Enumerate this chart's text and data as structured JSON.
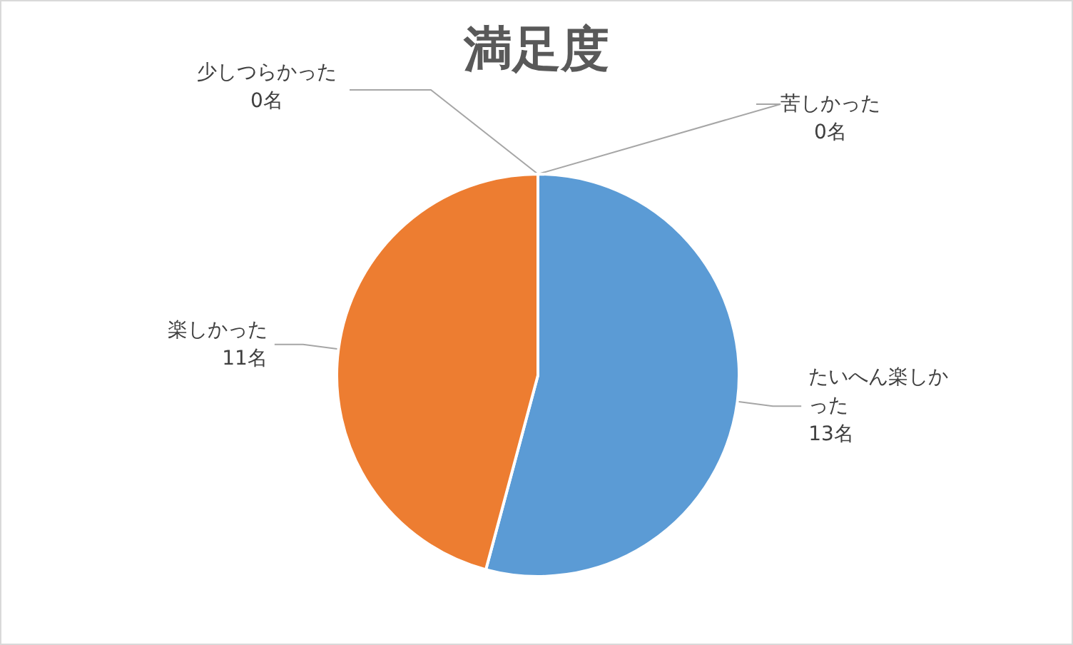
{
  "chart_data": {
    "type": "pie",
    "title": "満足度",
    "categories": [
      "たいへん楽しかった",
      "楽しかった",
      "少しつらかった",
      "苦しかった"
    ],
    "values": [
      13,
      11,
      0,
      0
    ],
    "value_labels": [
      "13名",
      "11名",
      "0名",
      "0名"
    ],
    "colors": [
      "#5b9bd5",
      "#ed7d31",
      "#a5a5a5",
      "#ffc000"
    ],
    "legend": false
  }
}
